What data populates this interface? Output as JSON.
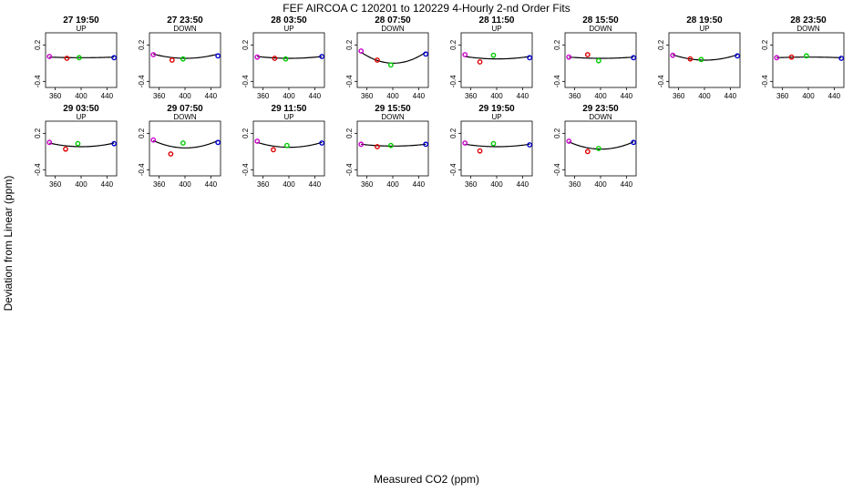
{
  "figure": {
    "title": "FEF   AIRCOA C   120201 to 120229   4-Hourly 2-nd Order Fits",
    "xlabel": "Measured CO2 (ppm)",
    "ylabel": "Deviation from Linear (ppm)"
  },
  "colors": {
    "line": "#000000",
    "point_1": "#cc00cc",
    "point_2": "#dd0000",
    "point_3": "#00cc00",
    "point_4": "#0000cc"
  },
  "chart_data": {
    "type": "scatter",
    "x_axis": {
      "range": [
        345,
        455
      ],
      "ticks": [
        360,
        400,
        440
      ]
    },
    "y_axis": {
      "range": [
        -0.5,
        0.4
      ],
      "ticks": [
        -0.4,
        0.2
      ],
      "tick_labels": [
        "-0.4",
        "0.2"
      ]
    },
    "panels": [
      {
        "time": "27 19:50",
        "direction": "UP",
        "points": [
          {
            "x": 351,
            "y": 0.01
          },
          {
            "x": 378,
            "y": -0.02
          },
          {
            "x": 397,
            "y": -0.01
          },
          {
            "x": 451,
            "y": -0.01
          }
        ],
        "curve": {
          "a": 0.0,
          "b": -0.01
        }
      },
      {
        "time": "27 23:50",
        "direction": "DOWN",
        "points": [
          {
            "x": 351,
            "y": 0.04
          },
          {
            "x": 380,
            "y": -0.05
          },
          {
            "x": 397,
            "y": -0.03
          },
          {
            "x": 451,
            "y": 0.02
          }
        ],
        "curve": {
          "a": 0.05,
          "b": -0.07
        }
      },
      {
        "time": "28 03:50",
        "direction": "UP",
        "points": [
          {
            "x": 351,
            "y": 0.0
          },
          {
            "x": 378,
            "y": -0.02
          },
          {
            "x": 395,
            "y": -0.03
          },
          {
            "x": 451,
            "y": 0.01
          }
        ],
        "curve": {
          "a": 0.01,
          "b": -0.03
        }
      },
      {
        "time": "28 07:50",
        "direction": "DOWN",
        "points": [
          {
            "x": 351,
            "y": 0.1
          },
          {
            "x": 376,
            "y": -0.05
          },
          {
            "x": 397,
            "y": -0.13
          },
          {
            "x": 451,
            "y": 0.05
          }
        ],
        "curve": {
          "a": 0.08,
          "b": -0.18
        }
      },
      {
        "time": "28 11:50",
        "direction": "UP",
        "points": [
          {
            "x": 351,
            "y": 0.04
          },
          {
            "x": 374,
            "y": -0.08
          },
          {
            "x": 395,
            "y": 0.03
          },
          {
            "x": 451,
            "y": -0.01
          }
        ],
        "curve": {
          "a": 0.01,
          "b": -0.04
        }
      },
      {
        "time": "28 15:50",
        "direction": "DOWN",
        "points": [
          {
            "x": 351,
            "y": 0.0
          },
          {
            "x": 380,
            "y": 0.04
          },
          {
            "x": 397,
            "y": -0.06
          },
          {
            "x": 451,
            "y": -0.01
          }
        ],
        "curve": {
          "a": 0.0,
          "b": -0.02
        }
      },
      {
        "time": "28 19:50",
        "direction": "UP",
        "points": [
          {
            "x": 351,
            "y": 0.03
          },
          {
            "x": 378,
            "y": -0.03
          },
          {
            "x": 395,
            "y": -0.04
          },
          {
            "x": 451,
            "y": 0.02
          }
        ],
        "curve": {
          "a": 0.04,
          "b": -0.09
        }
      },
      {
        "time": "28 23:50",
        "direction": "DOWN",
        "points": [
          {
            "x": 351,
            "y": -0.01
          },
          {
            "x": 374,
            "y": 0.0
          },
          {
            "x": 397,
            "y": 0.02
          },
          {
            "x": 451,
            "y": -0.02
          }
        ],
        "curve": {
          "a": -0.01,
          "b": 0.01
        }
      },
      {
        "time": "29 03:50",
        "direction": "UP",
        "points": [
          {
            "x": 351,
            "y": 0.05
          },
          {
            "x": 376,
            "y": -0.06
          },
          {
            "x": 395,
            "y": 0.03
          },
          {
            "x": 451,
            "y": 0.03
          }
        ],
        "curve": {
          "a": 0.04,
          "b": -0.06
        }
      },
      {
        "time": "29 07:50",
        "direction": "DOWN",
        "points": [
          {
            "x": 351,
            "y": 0.09
          },
          {
            "x": 378,
            "y": -0.14
          },
          {
            "x": 397,
            "y": 0.04
          },
          {
            "x": 451,
            "y": 0.05
          }
        ],
        "curve": {
          "a": 0.08,
          "b": -0.12
        }
      },
      {
        "time": "29 11:50",
        "direction": "UP",
        "points": [
          {
            "x": 351,
            "y": 0.07
          },
          {
            "x": 376,
            "y": -0.07
          },
          {
            "x": 397,
            "y": 0.0
          },
          {
            "x": 451,
            "y": 0.04
          }
        ],
        "curve": {
          "a": 0.05,
          "b": -0.08
        }
      },
      {
        "time": "29 15:50",
        "direction": "DOWN",
        "points": [
          {
            "x": 351,
            "y": 0.02
          },
          {
            "x": 376,
            "y": -0.02
          },
          {
            "x": 397,
            "y": 0.0
          },
          {
            "x": 451,
            "y": 0.02
          }
        ],
        "curve": {
          "a": 0.02,
          "b": -0.03
        }
      },
      {
        "time": "29 19:50",
        "direction": "UP",
        "points": [
          {
            "x": 351,
            "y": 0.04
          },
          {
            "x": 374,
            "y": -0.09
          },
          {
            "x": 395,
            "y": 0.03
          },
          {
            "x": 451,
            "y": 0.01
          }
        ],
        "curve": {
          "a": 0.02,
          "b": -0.04
        }
      },
      {
        "time": "29 23:50",
        "direction": "DOWN",
        "points": [
          {
            "x": 351,
            "y": 0.07
          },
          {
            "x": 380,
            "y": -0.1
          },
          {
            "x": 397,
            "y": -0.05
          },
          {
            "x": 451,
            "y": 0.05
          }
        ],
        "curve": {
          "a": 0.06,
          "b": -0.12
        }
      }
    ]
  }
}
